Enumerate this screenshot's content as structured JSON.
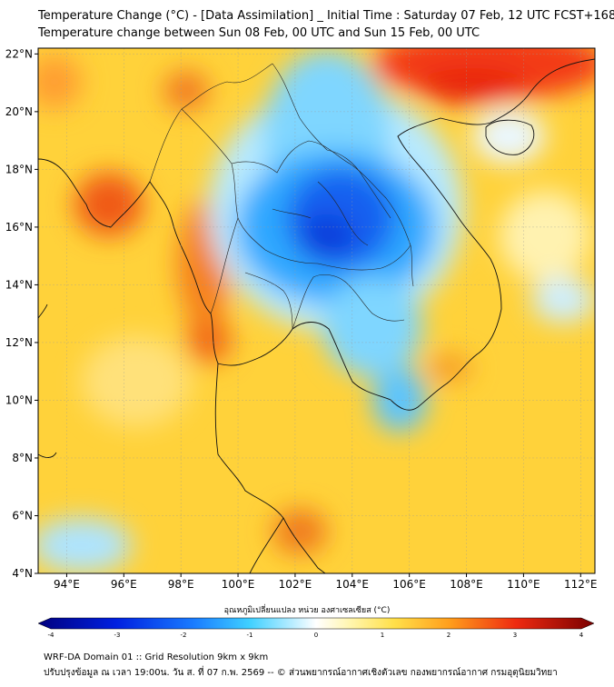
{
  "title_line1": "Temperature Change (°C) - [Data Assimilation] _ Initial Time : Saturday 07 Feb, 12 UTC FCST+168",
  "title_line2": "Temperature change between Sun 08 Feb, 00 UTC and Sun 15 Feb, 00 UTC",
  "lon_labels": [
    "94°E",
    "96°E",
    "98°E",
    "100°E",
    "102°E",
    "104°E",
    "106°E",
    "108°E",
    "110°E",
    "112°E"
  ],
  "lat_labels": [
    "4°N",
    "6°N",
    "8°N",
    "10°N",
    "12°N",
    "14°N",
    "16°N",
    "18°N",
    "20°N",
    "22°N"
  ],
  "lon_values": [
    94,
    96,
    98,
    100,
    102,
    104,
    106,
    108,
    110,
    112
  ],
  "lat_values": [
    4,
    6,
    8,
    10,
    12,
    14,
    16,
    18,
    20,
    22
  ],
  "extent": {
    "lon": [
      93,
      112.5
    ],
    "lat": [
      4,
      22.2
    ]
  },
  "colorbar": {
    "label": "อุณหภูมิเปลี่ยนแปลง หน่วย องศาเซลเซียส (°C)",
    "ticks": [
      "-4",
      "-3",
      "-2",
      "-1",
      "0",
      "1",
      "2",
      "3",
      "4"
    ],
    "tick_values": [
      -4,
      -3,
      -2,
      -1,
      0,
      1,
      2,
      3,
      4
    ],
    "range": [
      -4,
      4
    ]
  },
  "footer_line1": "WRF-DA Domain 01 :: Grid Resolution 9km x 9km",
  "footer_line2": "ปรับปรุงข้อมูล ณ เวลา 19:00น. วัน ส. ที่ 07 ก.พ. 2569 -- © ส่วนพยากรณ์อากาศเชิงตัวเลข กองพยากรณ์อากาศ กรมอุตุนิยมวิทยา"
}
